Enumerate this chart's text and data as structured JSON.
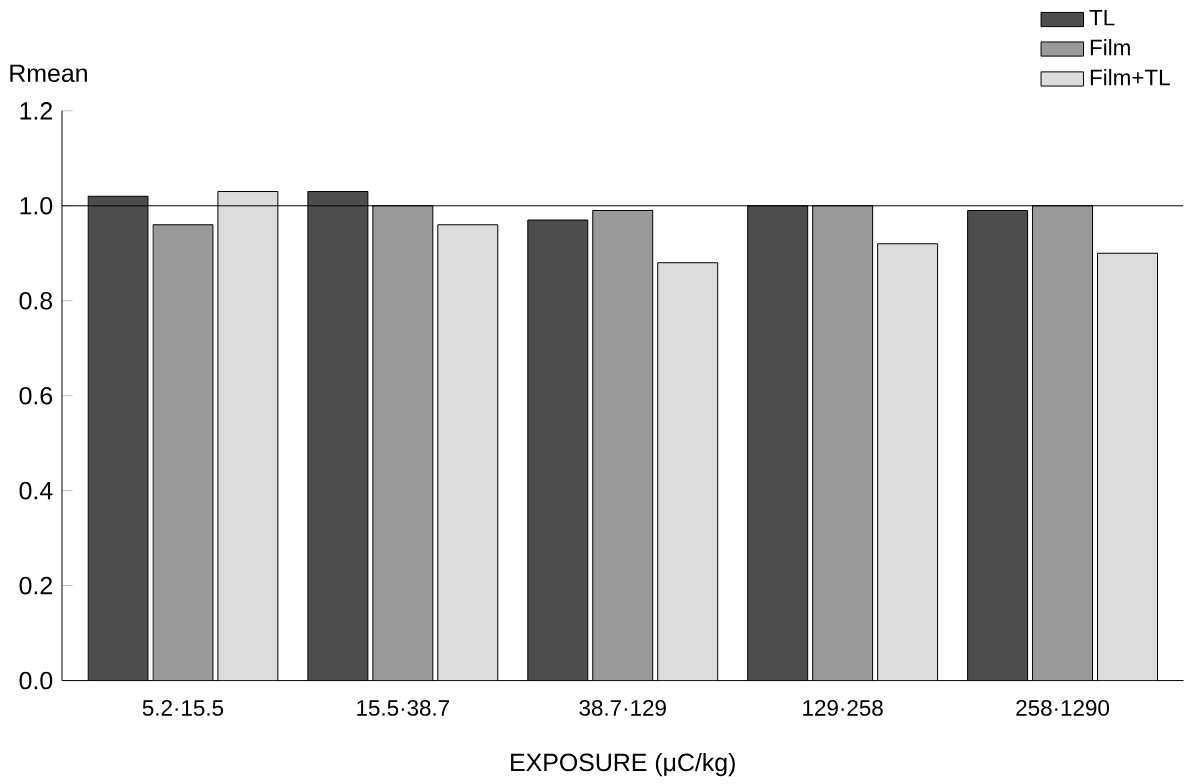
{
  "chart_data": {
    "type": "bar",
    "ylabel": "Rmean",
    "xlabel": "EXPOSURE (μC/kg)",
    "categories": [
      "5.2·15.5",
      "15.5·38.7",
      "38.7·129",
      "129·258",
      "258·1290"
    ],
    "series": [
      {
        "name": "TL",
        "color": "#4d4d4d",
        "values": [
          1.02,
          1.03,
          0.97,
          1.0,
          0.99
        ]
      },
      {
        "name": "Film",
        "color": "#9a9a9a",
        "values": [
          0.96,
          1.0,
          0.99,
          1.0,
          1.0
        ]
      },
      {
        "name": "Film+TL",
        "color": "#dcdcdc",
        "values": [
          1.03,
          0.96,
          0.88,
          0.92,
          0.9
        ]
      }
    ],
    "ylim": [
      0,
      1.2
    ],
    "yticks": [
      {
        "value": 0,
        "label": "0.0"
      },
      {
        "value": 0.2,
        "label": "0.2"
      },
      {
        "value": 0.4,
        "label": "0.4"
      },
      {
        "value": 0.6,
        "label": "0.6"
      },
      {
        "value": 0.8,
        "label": "0.8"
      },
      {
        "value": 1.0,
        "label": "1.0"
      },
      {
        "value": 1.2,
        "label": "1.2"
      }
    ],
    "ref_lines": [
      {
        "axis": "y",
        "value": 1.0
      }
    ],
    "legend": "top right",
    "grid": false
  }
}
